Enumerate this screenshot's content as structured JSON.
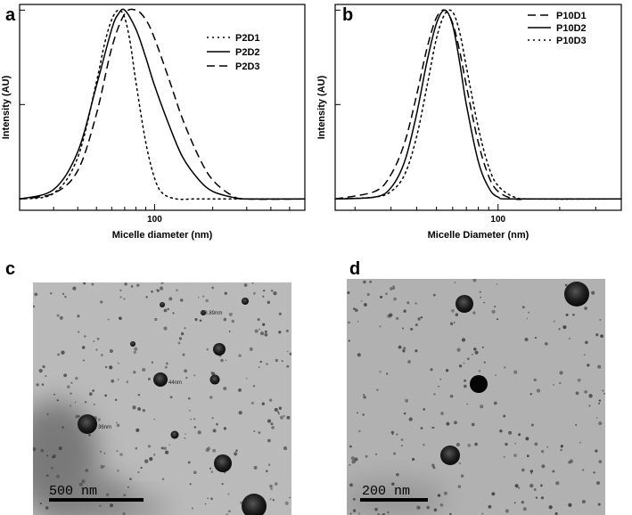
{
  "panels": {
    "a": "a",
    "b": "b",
    "c": "c",
    "d": "d"
  },
  "chart_data": [
    {
      "id": "a",
      "type": "line",
      "title": "",
      "xlabel": "Micelle diameter (nm)",
      "ylabel": "Intensity (AU)",
      "xscale": "log",
      "xlim": [
        20,
        600
      ],
      "ylim": [
        -0.06,
        1.03
      ],
      "xticks": [
        100
      ],
      "xtick_labels": [
        "100"
      ],
      "legend_position": "top-right",
      "series": [
        {
          "name": "P2D1",
          "style": "dotted",
          "x": [
            20,
            30,
            40,
            50,
            55,
            60,
            65,
            70,
            75,
            80,
            90,
            100,
            110,
            130,
            160,
            200,
            300,
            600
          ],
          "y": [
            0.0,
            0.03,
            0.22,
            0.62,
            0.82,
            0.95,
            1.0,
            0.96,
            0.82,
            0.62,
            0.3,
            0.11,
            0.03,
            0.0,
            0.0,
            0.0,
            0.0,
            0.0
          ]
        },
        {
          "name": "P2D2",
          "style": "solid",
          "x": [
            20,
            30,
            40,
            50,
            60,
            65,
            70,
            80,
            90,
            100,
            120,
            140,
            170,
            200,
            250,
            300,
            600
          ],
          "y": [
            0.0,
            0.05,
            0.25,
            0.6,
            0.9,
            0.98,
            1.0,
            0.9,
            0.75,
            0.6,
            0.38,
            0.22,
            0.1,
            0.04,
            0.01,
            0.0,
            0.0
          ]
        },
        {
          "name": "P2D3",
          "style": "dashed",
          "x": [
            20,
            30,
            40,
            50,
            60,
            70,
            80,
            90,
            100,
            120,
            140,
            170,
            200,
            250,
            300,
            600
          ],
          "y": [
            0.0,
            0.03,
            0.15,
            0.45,
            0.8,
            0.98,
            1.0,
            0.95,
            0.85,
            0.62,
            0.42,
            0.22,
            0.1,
            0.02,
            0.0,
            0.0
          ]
        }
      ]
    },
    {
      "id": "b",
      "type": "line",
      "title": "",
      "xlabel": "Micelle Diameter (nm)",
      "ylabel": "Intensity (AU)",
      "xscale": "log",
      "xlim": [
        16,
        400
      ],
      "ylim": [
        -0.06,
        1.03
      ],
      "xticks": [
        100
      ],
      "xtick_labels": [
        "100"
      ],
      "legend_position": "top-right",
      "series": [
        {
          "name": "P10D1",
          "style": "dashed",
          "x": [
            16,
            25,
            30,
            35,
            40,
            45,
            50,
            55,
            60,
            65,
            70,
            80,
            90,
            100,
            120,
            150,
            400
          ],
          "y": [
            0.0,
            0.04,
            0.13,
            0.3,
            0.55,
            0.8,
            0.96,
            1.0,
            0.93,
            0.78,
            0.6,
            0.3,
            0.12,
            0.04,
            0.0,
            0.0,
            0.0
          ]
        },
        {
          "name": "P10D2",
          "style": "solid",
          "x": [
            16,
            25,
            30,
            35,
            40,
            45,
            50,
            55,
            60,
            65,
            70,
            80,
            90,
            100,
            120,
            400
          ],
          "y": [
            0.0,
            0.01,
            0.06,
            0.2,
            0.45,
            0.73,
            0.93,
            1.0,
            0.92,
            0.72,
            0.5,
            0.2,
            0.06,
            0.01,
            0.0,
            0.0
          ]
        },
        {
          "name": "P10D3",
          "style": "dotted",
          "x": [
            16,
            25,
            30,
            35,
            40,
            45,
            50,
            55,
            60,
            65,
            70,
            80,
            90,
            100,
            120,
            150,
            400
          ],
          "y": [
            0.0,
            0.01,
            0.04,
            0.13,
            0.33,
            0.6,
            0.85,
            0.98,
            0.99,
            0.88,
            0.7,
            0.38,
            0.17,
            0.07,
            0.01,
            0.0,
            0.0
          ]
        }
      ]
    }
  ],
  "tem": {
    "c": {
      "scale_text": "500 nm",
      "annotations": [
        "18.89nm",
        "44nm",
        "36nm"
      ]
    },
    "d": {
      "scale_text": "200 nm"
    }
  }
}
